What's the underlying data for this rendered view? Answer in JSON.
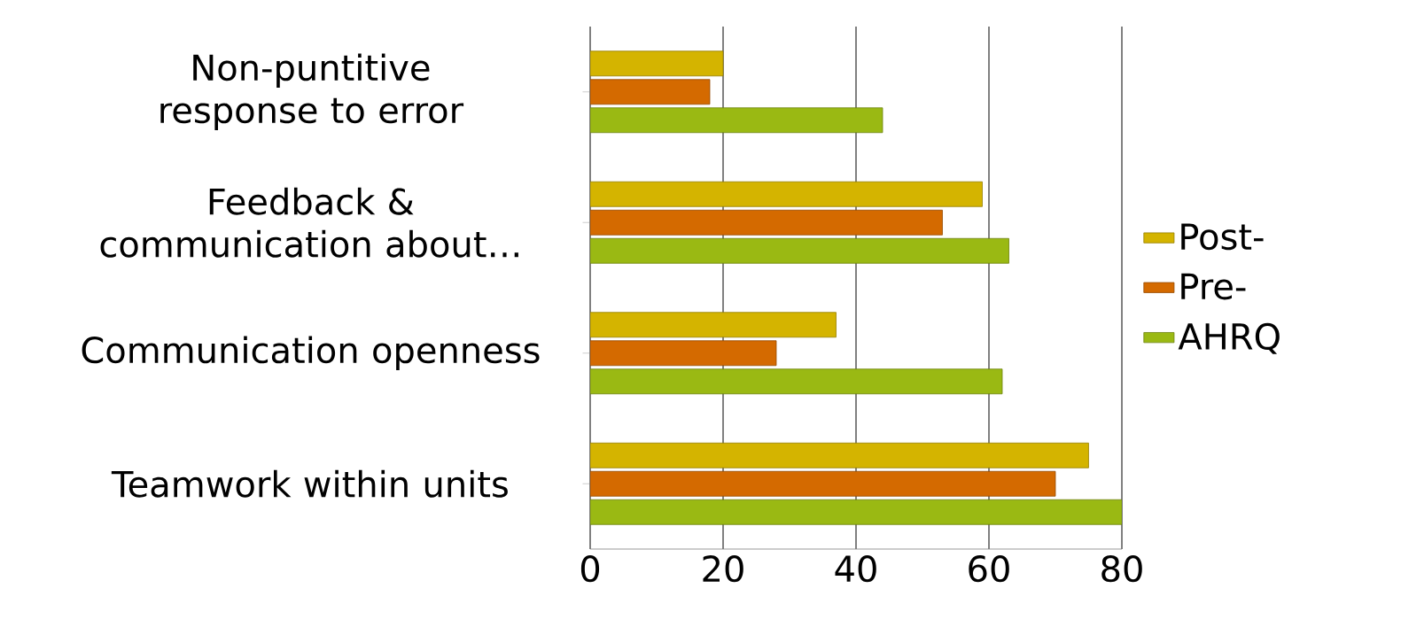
{
  "chart_data": {
    "type": "bar",
    "orientation": "horizontal",
    "categories": [
      "Non-puntitive response to error",
      "Feedback & communication about…",
      "Communication openness",
      "Teamwork within units"
    ],
    "series": [
      {
        "name": "Post-",
        "color": "#d4b400",
        "values": [
          20,
          59,
          37,
          75
        ]
      },
      {
        "name": "Pre-",
        "color": "#d46a00",
        "values": [
          18,
          53,
          28,
          70
        ]
      },
      {
        "name": "AHRQ",
        "color": "#9ab913",
        "values": [
          44,
          63,
          62,
          80
        ]
      }
    ],
    "xlim": [
      0,
      80
    ],
    "xticks": [
      0,
      20,
      40,
      60,
      80
    ],
    "grid": "x",
    "legend": "right"
  }
}
